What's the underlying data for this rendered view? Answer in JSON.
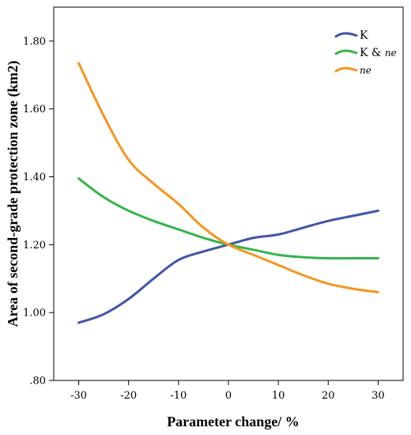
{
  "chart_data": {
    "type": "line",
    "xlabel": "Parameter change/ %",
    "ylabel": "Area of second-grade protection zone (km2)",
    "xlim": [
      -35,
      35
    ],
    "ylim": [
      0.8,
      1.9
    ],
    "x_ticks": [
      -30,
      -20,
      -10,
      0,
      10,
      20,
      30
    ],
    "x_tick_labels": [
      "-30",
      "-20",
      "-10",
      "0",
      "10",
      "20",
      "30"
    ],
    "y_ticks": [
      0.8,
      1.0,
      1.2,
      1.4,
      1.6,
      1.8
    ],
    "y_tick_labels": [
      ".80",
      "1.00",
      "1.20",
      "1.40",
      "1.60",
      "1.80"
    ],
    "grid": false,
    "legend_position": "top-right",
    "x": [
      -30,
      -25,
      -20,
      -15,
      -10,
      -5,
      0,
      5,
      10,
      15,
      20,
      25,
      30
    ],
    "series": [
      {
        "name": "K",
        "legend_parts": [
          "K"
        ],
        "color": "#3f55a8",
        "values": [
          0.97,
          0.995,
          1.04,
          1.1,
          1.155,
          1.18,
          1.2,
          1.22,
          1.23,
          1.25,
          1.27,
          1.285,
          1.3
        ]
      },
      {
        "name": "K & ne",
        "legend_parts": [
          "K & ",
          "ne"
        ],
        "color": "#33b54a",
        "values": [
          1.395,
          1.34,
          1.3,
          1.27,
          1.245,
          1.22,
          1.2,
          1.185,
          1.17,
          1.163,
          1.16,
          1.16,
          1.16
        ]
      },
      {
        "name": "ne",
        "legend_parts": [
          "",
          "ne"
        ],
        "color": "#f7941d",
        "values": [
          1.735,
          1.58,
          1.45,
          1.38,
          1.32,
          1.25,
          1.2,
          1.17,
          1.14,
          1.11,
          1.085,
          1.07,
          1.06
        ]
      }
    ]
  }
}
